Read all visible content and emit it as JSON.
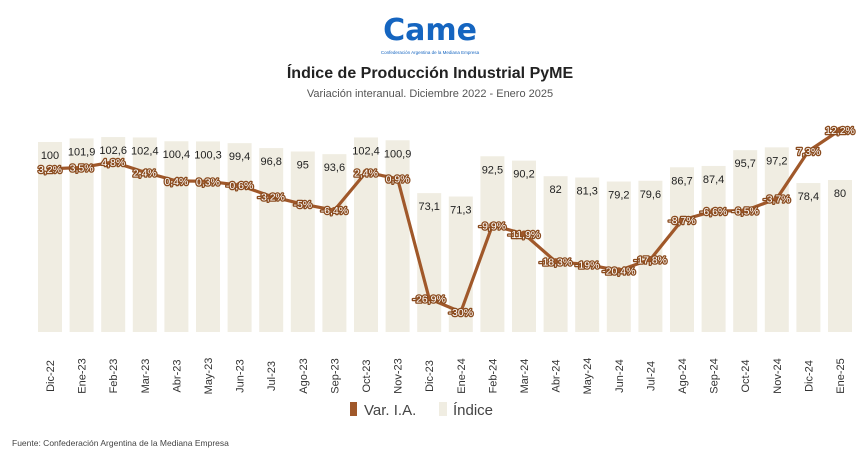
{
  "logo": {
    "text": "Came",
    "caption": "Confederación Argentina de la Mediana Empresa",
    "color": "#1565c0"
  },
  "source": "Fuente: Confederación Argentina de la Mediana Empresa",
  "chart_data": {
    "type": "bar",
    "title": "Índice de Producción Industrial PyME",
    "subtitle": "Variación interanual. Diciembre 2022 - Enero 2025",
    "categories": [
      "Dic-22",
      "Ene-23",
      "Feb-23",
      "Mar-23",
      "Abr-23",
      "May-23",
      "Jun-23",
      "Jul-23",
      "Ago-23",
      "Sep-23",
      "Oct-23",
      "Nov-23",
      "Dic-23",
      "Ene-24",
      "Feb-24",
      "Mar-24",
      "Abr-24",
      "May-24",
      "Jun-24",
      "Jul-24",
      "Ago-24",
      "Sep-24",
      "Oct-24",
      "Nov-24",
      "Dic-24",
      "Ene-25"
    ],
    "series": [
      {
        "name": "Índice",
        "type": "bar",
        "color": "#f0ede2",
        "values": [
          100,
          101.9,
          102.6,
          102.4,
          100.4,
          100.3,
          99.4,
          96.8,
          95,
          93.6,
          102.4,
          100.9,
          73.1,
          71.3,
          92.5,
          90.2,
          82,
          81.3,
          79.2,
          79.6,
          86.7,
          87.4,
          95.7,
          97.2,
          78.4,
          80
        ],
        "labels": [
          "100",
          "101,9",
          "102,6",
          "102,4",
          "100,4",
          "100,3",
          "99,4",
          "96,8",
          "95",
          "93,6",
          "102,4",
          "100,9",
          "73,1",
          "71,3",
          "92,5",
          "90,2",
          "82",
          "81,3",
          "79,2",
          "79,6",
          "86,7",
          "87,4",
          "95,7",
          "97,2",
          "78,4",
          "80"
        ]
      },
      {
        "name": "Var. I.A.",
        "type": "line",
        "color": "#a0582a",
        "values": [
          3.2,
          3.5,
          4.8,
          2.4,
          0.4,
          0.3,
          -0.6,
          -3.2,
          -5,
          -6.4,
          2.4,
          0.9,
          -26.9,
          -30,
          -9.9,
          -11.9,
          -18.3,
          -19,
          -20.4,
          -17.8,
          -8.7,
          -6.6,
          -6.5,
          -3.7,
          7.3,
          12.2
        ],
        "labels": [
          "3,2%",
          "3,5%",
          "4,8%",
          "2,4%",
          "0,4%",
          "0,3%",
          "-0,6%",
          "-3,2%",
          "-5%",
          "-6,4%",
          "2,4%",
          "0,9%",
          "-26,9%",
          "-30%",
          "-9,9%",
          "-11,9%",
          "-18,3%",
          "-19%",
          "-20,4%",
          "-17,8%",
          "-8,7%",
          "-6,6%",
          "-6,5%",
          "-3,7%",
          "7,3%",
          "12,2%"
        ]
      }
    ],
    "legend": {
      "position": "bottom",
      "entries": [
        "Var. I.A.",
        "Índice"
      ]
    },
    "grid": false
  }
}
